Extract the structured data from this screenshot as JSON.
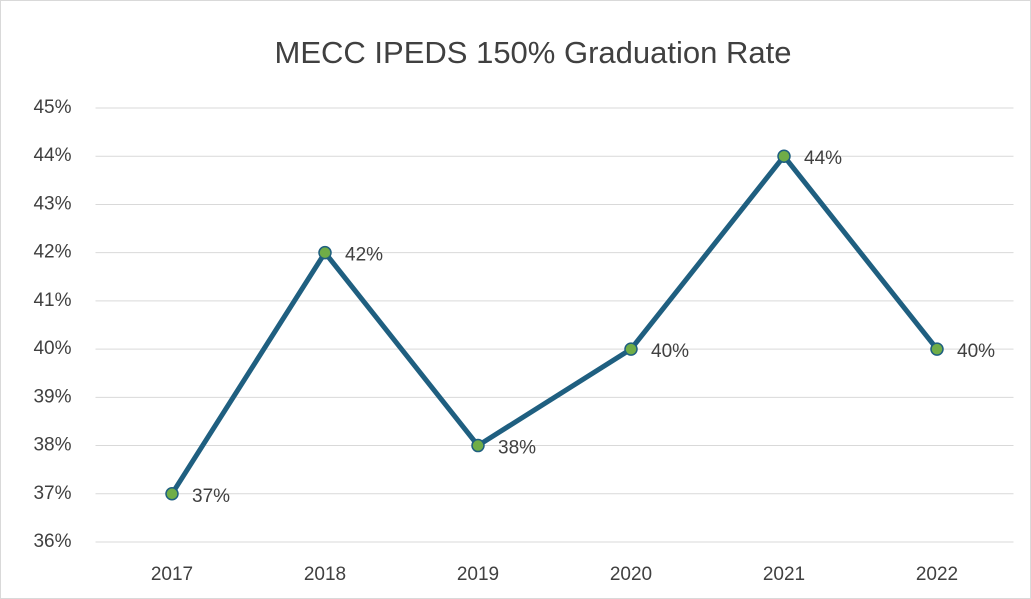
{
  "chart_data": {
    "type": "line",
    "title": "MECC IPEDS 150% Graduation Rate",
    "categories": [
      "2017",
      "2018",
      "2019",
      "2020",
      "2021",
      "2022"
    ],
    "values": [
      37,
      42,
      38,
      40,
      44,
      40
    ],
    "value_labels": [
      "37%",
      "42%",
      "38%",
      "40%",
      "44%",
      "40%"
    ],
    "color": "#1f5f80",
    "marker_color": "#70ad47",
    "ylim": [
      36,
      45
    ],
    "yticks": [
      {
        "value": 36,
        "label": "36%"
      },
      {
        "value": 37,
        "label": "37%"
      },
      {
        "value": 38,
        "label": "38%"
      },
      {
        "value": 39,
        "label": "39%"
      },
      {
        "value": 40,
        "label": "40%"
      },
      {
        "value": 41,
        "label": "41%"
      },
      {
        "value": 42,
        "label": "42%"
      },
      {
        "value": 43,
        "label": "43%"
      },
      {
        "value": 44,
        "label": "44%"
      },
      {
        "value": 45,
        "label": "45%"
      }
    ],
    "grid": true
  }
}
